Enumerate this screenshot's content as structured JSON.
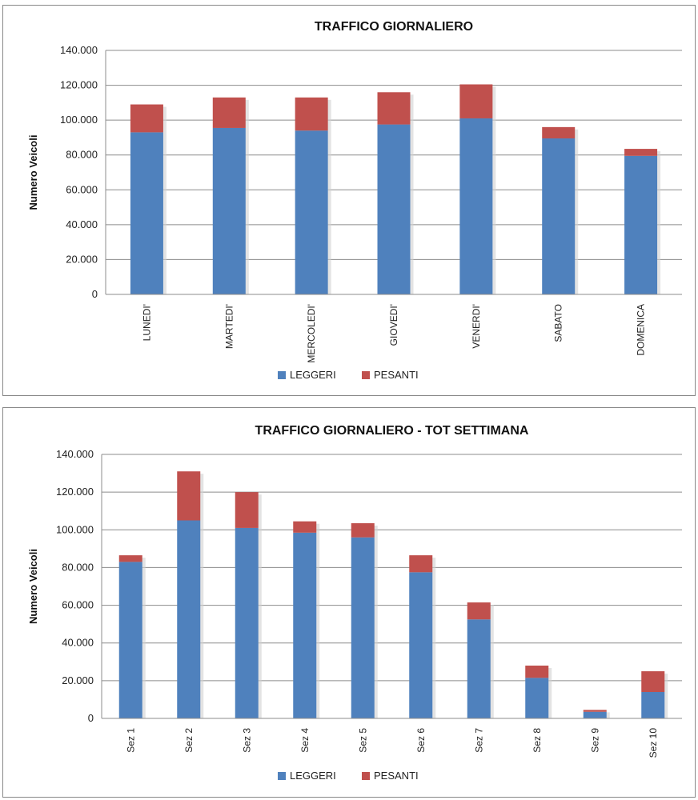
{
  "colors": {
    "leggeri": "#4f81bd",
    "pesanti": "#c0504d"
  },
  "chart_data": [
    {
      "type": "bar",
      "stacked": true,
      "title": "TRAFFICO GIORNALIERO",
      "xlabel": "",
      "ylabel": "Numero Veicoli",
      "ylim": [
        0,
        140000
      ],
      "yticks": [
        "0",
        "20.000",
        "40.000",
        "60.000",
        "80.000",
        "100.000",
        "120.000",
        "140.000"
      ],
      "categories": [
        "LUNEDI'",
        "MARTEDI'",
        "MERCOLEDI'",
        "GIOVEDI'",
        "VENERDI'",
        "SABATO",
        "DOMENICA"
      ],
      "series": [
        {
          "name": "LEGGERI",
          "values": [
            93000,
            95500,
            94000,
            97500,
            101000,
            89500,
            79500
          ]
        },
        {
          "name": "PESANTI",
          "values": [
            16000,
            17500,
            19000,
            18500,
            19500,
            6500,
            4000
          ]
        }
      ],
      "grid": true,
      "legend": "bottom"
    },
    {
      "type": "bar",
      "stacked": true,
      "title": "TRAFFICO GIORNALIERO - TOT SETTIMANA",
      "xlabel": "",
      "ylabel": "Numero Veicoli",
      "ylim": [
        0,
        140000
      ],
      "yticks": [
        "0",
        "20.000",
        "40.000",
        "60.000",
        "80.000",
        "100.000",
        "120.000",
        "140.000"
      ],
      "categories": [
        "Sez 1",
        "Sez 2",
        "Sez 3",
        "Sez 4",
        "Sez 5",
        "Sez 6",
        "Sez 7",
        "Sez 8",
        "Sez 9",
        "Sez 10"
      ],
      "series": [
        {
          "name": "LEGGERI",
          "values": [
            83000,
            105000,
            101000,
            98500,
            96000,
            77500,
            52500,
            21500,
            3500,
            14000
          ]
        },
        {
          "name": "PESANTI",
          "values": [
            3500,
            26000,
            19000,
            6000,
            7500,
            9000,
            9000,
            6500,
            1000,
            11000
          ]
        }
      ],
      "grid": true,
      "legend": "bottom"
    }
  ]
}
